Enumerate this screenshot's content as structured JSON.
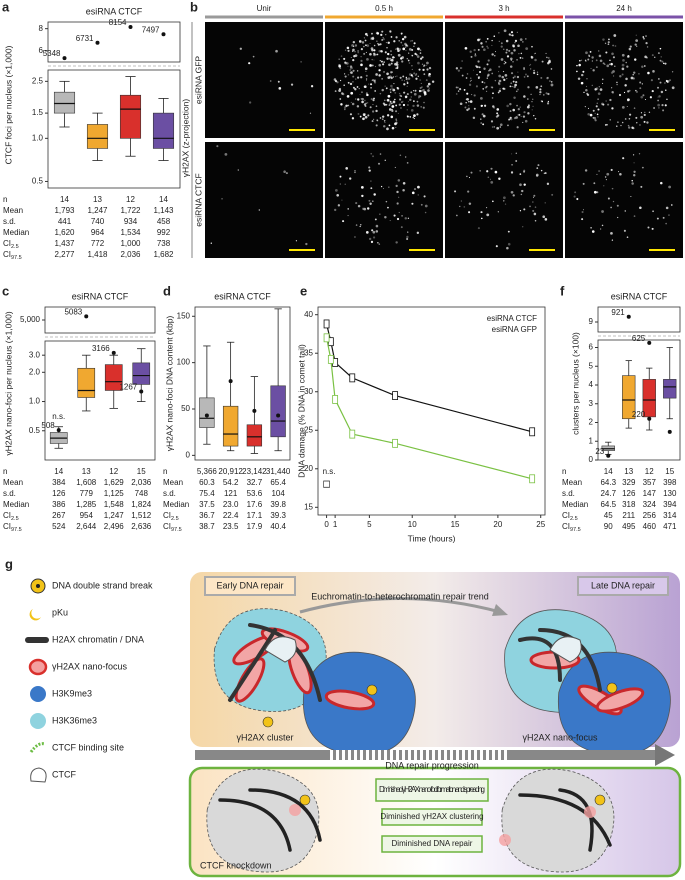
{
  "panel_labels": [
    "a",
    "b",
    "c",
    "d",
    "e",
    "f",
    "g"
  ],
  "chart_data": [
    {
      "type": "box",
      "title": "esiRNA CTCF",
      "y_label": "CTCF foci per nucleus (×1,000)",
      "log_scale": true,
      "ylim": [
        0.45,
        3.0
      ],
      "yticks": [
        0.5,
        {
          "value": 1,
          "label": "1.0"
        },
        1.5,
        2.5
      ],
      "ylim_upper": [
        5,
        8.6
      ],
      "yticks_upper": [
        6,
        8
      ],
      "colors": [
        "#b8b8b8",
        "#f0a830",
        "#d9302c",
        "#6b4fa3"
      ],
      "boxes": [
        {
          "whisker_low": 1.2,
          "q1": 1.5,
          "median": 1.75,
          "q3": 2.1,
          "whisker_high": 2.5,
          "outliers": [
            {
              "value": 5.348,
              "label": "5348"
            }
          ]
        },
        {
          "whisker_low": 0.7,
          "q1": 0.85,
          "median": 1.0,
          "q3": 1.25,
          "whisker_high": 1.5,
          "outliers": [
            {
              "value": 6.731,
              "label": "6731"
            }
          ]
        },
        {
          "whisker_low": 0.75,
          "q1": 1.0,
          "median": 1.6,
          "q3": 2.0,
          "whisker_high": 2.7,
          "outliers": [
            {
              "value": 8.154,
              "label": "8154"
            }
          ]
        },
        {
          "whisker_low": 0.7,
          "q1": 0.85,
          "median": 1.0,
          "q3": 1.5,
          "whisker_high": 1.9,
          "outliers": [
            {
              "value": 7.497,
              "label": "7497"
            }
          ]
        }
      ],
      "stats": [
        {
          "label": "n",
          "values": [
            "14",
            "13",
            "12",
            "14"
          ]
        },
        {
          "label": "Mean",
          "values": [
            "1,793",
            "1,247",
            "1,722",
            "1,143"
          ]
        },
        {
          "label": "s.d.",
          "values": [
            "441",
            "740",
            "934",
            "458"
          ]
        },
        {
          "label": "Median",
          "values": [
            "1,620",
            "964",
            "1,534",
            "992"
          ]
        },
        {
          "label": "CI",
          "sub": "2.5",
          "values": [
            "1,437",
            "772",
            "1,000",
            "738"
          ]
        },
        {
          "label": "CI",
          "sub": "97.5",
          "values": [
            "2,277",
            "1,418",
            "2,036",
            "1,682"
          ]
        }
      ]
    },
    {
      "type": "box",
      "title": "esiRNA CTCF",
      "y_label": "γH2AX nano-foci per nucleus (×1,000)",
      "log_scale": true,
      "ylim": [
        0.25,
        4.2
      ],
      "yticks": [
        0.5,
        {
          "value": 1,
          "label": "1.0"
        },
        {
          "value": 2,
          "label": "2.0"
        },
        {
          "value": 3,
          "label": "3.0"
        }
      ],
      "ylim_upper": [
        4.7,
        5.3
      ],
      "yticks_upper": [
        {
          "value": 5,
          "label": "5,000"
        }
      ],
      "colors": [
        "#b8b8b8",
        "#f0a830",
        "#d9302c",
        "#6b4fa3"
      ],
      "boxes": [
        {
          "whisker_low": 0.33,
          "q1": 0.37,
          "median": 0.42,
          "q3": 0.48,
          "whisker_high": 0.55,
          "note": "n.s.",
          "outliers": [
            {
              "value": 0.508,
              "label": "508"
            }
          ]
        },
        {
          "whisker_low": 0.8,
          "q1": 1.1,
          "median": 1.3,
          "q3": 2.2,
          "whisker_high": 3.0,
          "outliers": [
            {
              "value": 5.083,
              "label": "5083"
            }
          ]
        },
        {
          "whisker_low": 0.85,
          "q1": 1.3,
          "median": 1.6,
          "q3": 2.4,
          "whisker_high": 3.0,
          "outliers": [
            {
              "value": 3.166,
              "label": "3166"
            }
          ]
        },
        {
          "whisker_low": 1.0,
          "q1": 1.5,
          "median": 1.85,
          "q3": 2.5,
          "whisker_high": 3.5,
          "outliers": [
            {
              "value": 1.267,
              "label": "1267"
            }
          ]
        }
      ],
      "stats": [
        {
          "label": "n",
          "values": [
            "14",
            "13",
            "12",
            "15"
          ]
        },
        {
          "label": "Mean",
          "values": [
            "384",
            "1,608",
            "1,629",
            "2,036"
          ]
        },
        {
          "label": "s.d.",
          "values": [
            "126",
            "779",
            "1,125",
            "748"
          ]
        },
        {
          "label": "Median",
          "values": [
            "386",
            "1,285",
            "1,548",
            "1,824"
          ]
        },
        {
          "label": "CI",
          "sub": "2.5",
          "values": [
            "267",
            "954",
            "1,247",
            "1,512"
          ]
        },
        {
          "label": "CI",
          "sub": "97.5",
          "values": [
            "524",
            "2,644",
            "2,496",
            "2,636"
          ]
        }
      ]
    },
    {
      "type": "box",
      "title": "esiRNA CTCF",
      "y_label": "γH2AX nano-foci DNA content (kbp)",
      "log_scale": false,
      "ylim": [
        -5,
        160
      ],
      "yticks": [
        0,
        50,
        100,
        150
      ],
      "colors": [
        "#b8b8b8",
        "#f0a830",
        "#d9302c",
        "#6b4fa3"
      ],
      "boxes": [
        {
          "whisker_low": 12,
          "q1": 30,
          "median": 40,
          "q3": 62,
          "whisker_high": 118,
          "points": [
            43
          ]
        },
        {
          "whisker_low": 5,
          "q1": 10,
          "median": 23,
          "q3": 53,
          "whisker_high": 122,
          "points": [
            80
          ]
        },
        {
          "whisker_low": 2,
          "q1": 10,
          "median": 20,
          "q3": 33,
          "whisker_high": 85,
          "points": [
            48
          ]
        },
        {
          "whisker_low": 5,
          "q1": 20,
          "median": 37,
          "q3": 75,
          "whisker_high": 158,
          "points": [
            43
          ]
        }
      ],
      "stats": [
        {
          "label": "n",
          "values": [
            "5,366",
            "20,912",
            "23,142",
            "31,440"
          ]
        },
        {
          "label": "Mean",
          "values": [
            "60.3",
            "54.2",
            "32.7",
            "65.4"
          ]
        },
        {
          "label": "s.d.",
          "values": [
            "75.4",
            "121",
            "53.6",
            "104"
          ]
        },
        {
          "label": "Median",
          "values": [
            "37.5",
            "23.0",
            "17.6",
            "39.8"
          ]
        },
        {
          "label": "CI",
          "sub": "2.5",
          "values": [
            "36.7",
            "22.4",
            "17.1",
            "39.3"
          ]
        },
        {
          "label": "CI",
          "sub": "97.5",
          "values": [
            "38.7",
            "23.5",
            "17.9",
            "40.4"
          ]
        }
      ]
    },
    {
      "type": "line",
      "x_label": "Time (hours)",
      "y_label": "DNA damage (% DNA in comet tail)",
      "xlim": [
        -1,
        25.5
      ],
      "xticks": [
        0,
        1,
        5,
        10,
        15,
        20,
        25
      ],
      "ylim": [
        14,
        41
      ],
      "yticks": [
        15,
        20,
        25,
        30,
        35,
        40
      ],
      "series": [
        {
          "name": "esiRNA CTCF",
          "color": "#111111",
          "x": [
            0,
            0.5,
            1,
            3,
            8,
            24
          ],
          "values": [
            38.8,
            36.5,
            33.8,
            31.8,
            29.5,
            24.8
          ]
        },
        {
          "name": "esiRNA GFP",
          "color": "#7ac143",
          "x": [
            0,
            0.5,
            1,
            3,
            8,
            24
          ],
          "values": [
            37.0,
            34.2,
            29.0,
            24.5,
            23.3,
            18.7
          ]
        }
      ],
      "control_values": [
        17.6,
        18.4
      ],
      "annotation": "n.s."
    },
    {
      "type": "box",
      "title": "esiRNA CTCF",
      "y_label": "clusters per nucleus (×100)",
      "log_scale": false,
      "ylim": [
        0,
        6.4
      ],
      "yticks": [
        0,
        1,
        2,
        3,
        4,
        5,
        6
      ],
      "ylim_upper": [
        8.6,
        9.6
      ],
      "yticks_upper": [
        9
      ],
      "colors": [
        "#b8b8b8",
        "#f0a830",
        "#d9302c",
        "#6b4fa3"
      ],
      "boxes": [
        {
          "whisker_low": 0.3,
          "q1": 0.5,
          "median": 0.6,
          "q3": 0.75,
          "whisker_high": 0.95,
          "outliers": [
            {
              "value": 0.23,
              "label": "23"
            }
          ]
        },
        {
          "whisker_low": 1.7,
          "q1": 2.2,
          "median": 3.2,
          "q3": 4.5,
          "whisker_high": 5.3,
          "outliers": [
            {
              "value": 9.21,
              "label": "921"
            }
          ]
        },
        {
          "whisker_low": 1.6,
          "q1": 2.3,
          "median": 3.2,
          "q3": 4.3,
          "whisker_high": 4.9,
          "outliers": [
            {
              "value": 6.25,
              "label": "625"
            },
            {
              "value": 2.2,
              "label": "220"
            }
          ]
        },
        {
          "whisker_low": 2.2,
          "q1": 3.3,
          "median": 3.9,
          "q3": 4.3,
          "whisker_high": 6.0,
          "points": [
            1.5
          ]
        }
      ],
      "stats": [
        {
          "label": "n",
          "values": [
            "14",
            "13",
            "12",
            "15"
          ]
        },
        {
          "label": "Mean",
          "values": [
            "64.3",
            "329",
            "357",
            "398"
          ]
        },
        {
          "label": "s.d.",
          "values": [
            "24.7",
            "126",
            "147",
            "130"
          ]
        },
        {
          "label": "Median",
          "values": [
            "64.5",
            "318",
            "324",
            "394"
          ]
        },
        {
          "label": "CI",
          "sub": "2.5",
          "values": [
            "45",
            "211",
            "256",
            "314"
          ]
        },
        {
          "label": "CI",
          "sub": "97.5",
          "values": [
            "90",
            "495",
            "460",
            "471"
          ]
        }
      ]
    }
  ],
  "microscopy": {
    "side_label": "γH2AX (z-projection)",
    "columns": [
      {
        "label": "Unir",
        "color": "#9a9a9a"
      },
      {
        "label": "0.5 h",
        "color": "#f0a830"
      },
      {
        "label": "3 h",
        "color": "#d9302c"
      },
      {
        "label": "24 h",
        "color": "#7b52a8"
      }
    ],
    "rows": [
      {
        "label": "esiRNA GFP",
        "color": "#6db33f"
      },
      {
        "label": "esiRNA CTCF",
        "color": "#222222"
      }
    ]
  },
  "model": {
    "legend": [
      "DNA double strand break",
      "pKu",
      "H2AX chromatin / DNA",
      "γH2AX nano-focus",
      "H3K9me3",
      "H3K36me3",
      "CTCF binding site",
      "CTCF"
    ],
    "early_label": "Early DNA repair",
    "late_label": "Late DNA repair",
    "trend": "Euchromatin-to-heterochromatin repair trend",
    "cluster_label": "γH2AX cluster",
    "nanofocus_label": "γH2AX nano-focus",
    "progression": "DNA repair progression",
    "knockdown_effects": [
      "Diminished γH2AX nano-foci formation and spreading",
      "Diminished γH2AX clustering",
      "Diminished DNA repair"
    ],
    "knockdown_label": "CTCF knockdown"
  }
}
